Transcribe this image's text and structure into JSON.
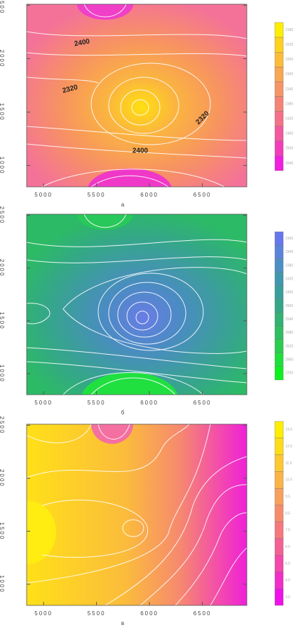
{
  "chart_data": [
    {
      "type": "contour",
      "caption": "а",
      "xlim": [
        4840,
        6920
      ],
      "ylim": [
        800,
        2510
      ],
      "xticks": [
        5000,
        5500,
        6000,
        6500
      ],
      "yticks": [
        1000,
        1500,
        2000,
        2500
      ],
      "contour_labels": [
        2400,
        2320,
        2320,
        2400
      ],
      "colorbar": {
        "levels": [
          2180,
          2220,
          2260,
          2300,
          2340,
          2380,
          2420,
          2460,
          2500,
          2540
        ],
        "colors": [
          "#ffee00",
          "#ffd21e",
          "#fdbb3a",
          "#f9a752",
          "#f69566",
          "#f58476",
          "#f47088",
          "#f4589e",
          "#f33cba",
          "#f21ee0"
        ]
      }
    },
    {
      "type": "contour",
      "caption": "б",
      "xlim": [
        4840,
        6920
      ],
      "ylim": [
        800,
        2510
      ],
      "xticks": [
        5000,
        5500,
        6000,
        6500
      ],
      "yticks": [
        1000,
        1500,
        2000,
        2500
      ],
      "colorbar": {
        "levels": [
          2300,
          2340,
          2380,
          2420,
          2460,
          2500,
          2540,
          2580,
          2620,
          2660,
          2700
        ],
        "colors": [
          "#6677ee",
          "#5a84dc",
          "#4c8fc4",
          "#4097b0",
          "#399f9c",
          "#35a788",
          "#33b274",
          "#30be62",
          "#2ccc4e",
          "#1ee03c",
          "#10f020"
        ]
      }
    },
    {
      "type": "contour",
      "caption": "в",
      "xlim": [
        4840,
        6920
      ],
      "ylim": [
        800,
        2510
      ],
      "xticks": [
        5000,
        5500,
        6000,
        6500
      ],
      "yticks": [
        1000,
        1500,
        2000,
        2500
      ],
      "colorbar": {
        "levels": [
          13.5,
          12.5,
          11.5,
          10.5,
          9.5,
          8.5,
          7.5,
          6.5,
          5.5,
          4.5,
          3.5
        ],
        "colors": [
          "#ffee00",
          "#ffdc18",
          "#fdc830",
          "#fbb446",
          "#f9a05a",
          "#f78c6c",
          "#f6787e",
          "#f56094",
          "#f448aa",
          "#f22ec8",
          "#f010ea"
        ]
      }
    }
  ]
}
